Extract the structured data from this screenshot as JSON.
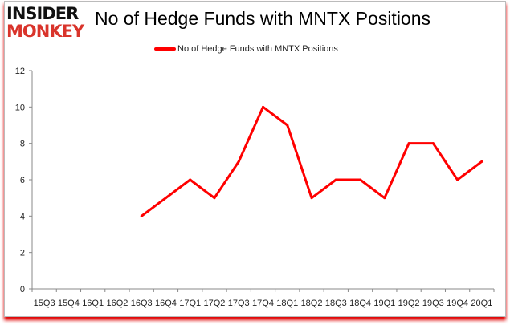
{
  "logo": {
    "line1": "INSIDER",
    "line2": "MONKEY"
  },
  "chart_data": {
    "type": "line",
    "title": "No of Hedge Funds with MNTX Positions",
    "categories": [
      "15Q3",
      "15Q4",
      "16Q1",
      "16Q2",
      "16Q3",
      "16Q4",
      "17Q1",
      "17Q2",
      "17Q3",
      "17Q4",
      "18Q1",
      "18Q2",
      "18Q3",
      "18Q4",
      "19Q1",
      "19Q2",
      "19Q3",
      "19Q4",
      "20Q1"
    ],
    "series": [
      {
        "name": "No of Hedge Funds with MNTX Positions",
        "color": "#ff0000",
        "values": [
          null,
          null,
          null,
          null,
          4,
          5,
          6,
          5,
          7,
          10,
          9,
          5,
          6,
          6,
          5,
          8,
          8,
          6,
          7
        ]
      }
    ],
    "ylim": [
      0,
      12
    ],
    "yticks": [
      0,
      2,
      4,
      6,
      8,
      10,
      12
    ],
    "grid": false,
    "legend": "top-center",
    "xlabel": "",
    "ylabel": ""
  }
}
